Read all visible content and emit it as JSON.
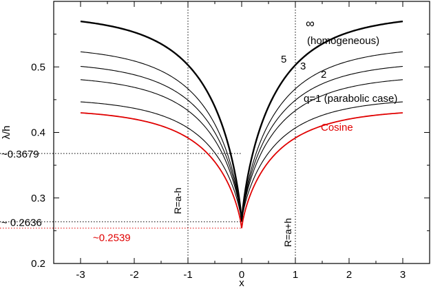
{
  "chart_data": {
    "type": "line",
    "xlabel": "x",
    "ylabel": "λ/h",
    "xlim": [
      -3.5,
      3.5
    ],
    "ylim": [
      0.2,
      0.6
    ],
    "x_ticks": [
      -3,
      -2,
      -1,
      0,
      1,
      2,
      3
    ],
    "y_ticks": [
      0.2,
      0.3,
      0.4,
      0.5
    ],
    "series": [
      {
        "name": "∞",
        "sub": "(homogeneous)",
        "color": "#000000",
        "width": 2.4,
        "x_range": [
          -3,
          3
        ],
        "center": 0.2636,
        "far": 0.58
      },
      {
        "name": "5",
        "color": "#000000",
        "width": 1.1,
        "x_range": [
          -3,
          3
        ],
        "center": 0.2636,
        "far": 0.532
      },
      {
        "name": "3",
        "color": "#000000",
        "width": 1.1,
        "x_range": [
          -3,
          3
        ],
        "center": 0.2636,
        "far": 0.509
      },
      {
        "name": "2",
        "color": "#000000",
        "width": 1.1,
        "x_range": [
          -3,
          3
        ],
        "center": 0.2636,
        "far": 0.488
      },
      {
        "name": "q=1 (parabolic case)",
        "color": "#000000",
        "width": 1.1,
        "x_range": [
          -3,
          3
        ],
        "center": 0.2636,
        "far": 0.453
      },
      {
        "name": "Cosine",
        "color": "#e00000",
        "width": 1.8,
        "x_range": [
          -3,
          3
        ],
        "center": 0.2539,
        "far": 0.436
      }
    ],
    "reference_lines": [
      {
        "orientation": "vertical",
        "x": -1,
        "label": "R=a-h"
      },
      {
        "orientation": "vertical",
        "x": 1,
        "label": "R=a+h"
      },
      {
        "orientation": "horizontal",
        "y": 0.3679,
        "label": "~0.3679",
        "color": "#000000"
      },
      {
        "orientation": "horizontal",
        "y": 0.2636,
        "label": "~ 0.2636",
        "color": "#000000"
      },
      {
        "orientation": "horizontal",
        "y": 0.2539,
        "label": "~0.2539",
        "color": "#e00000"
      }
    ]
  }
}
